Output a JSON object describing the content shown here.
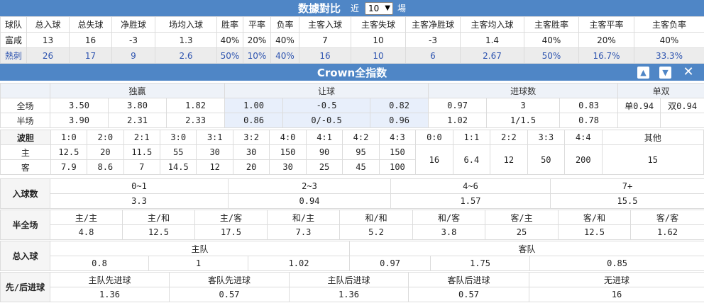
{
  "stats_header": {
    "title": "数據對比",
    "prefix": "近",
    "select_value": "10",
    "suffix": "場"
  },
  "stats": {
    "columns": [
      "球队",
      "总入球",
      "总失球",
      "净胜球",
      "场均入球",
      "胜率",
      "平率",
      "负率",
      "主客入球",
      "主客失球",
      "主客净胜球",
      "主客均入球",
      "主客胜率",
      "主客平率",
      "主客负率"
    ],
    "rows": [
      [
        "富咸",
        "13",
        "16",
        "-3",
        "1.3",
        "40%",
        "20%",
        "40%",
        "7",
        "10",
        "-3",
        "1.4",
        "40%",
        "20%",
        "40%"
      ],
      [
        "熱刺",
        "26",
        "17",
        "9",
        "2.6",
        "50%",
        "10%",
        "40%",
        "16",
        "10",
        "6",
        "2.67",
        "50%",
        "16.7%",
        "33.3%"
      ]
    ]
  },
  "crown_header": {
    "title": "Crown全指数",
    "up_icon": "▲",
    "down_icon": "▼",
    "close_icon": "✕"
  },
  "odds": {
    "groups": [
      "独赢",
      "让球",
      "进球数",
      "单双"
    ],
    "rows": [
      {
        "label": "全场",
        "win": [
          "3.50",
          "3.80",
          "1.82"
        ],
        "handicap": [
          "1.00",
          "-0.5",
          "0.82"
        ],
        "goals": [
          "0.97",
          "3",
          "0.83"
        ],
        "odd": "单0.94",
        "even": "双0.94"
      },
      {
        "label": "半场",
        "win": [
          "3.90",
          "2.31",
          "2.33"
        ],
        "handicap": [
          "0.86",
          "0/-0.5",
          "0.96"
        ],
        "goals": [
          "1.02",
          "1/1.5",
          "0.78"
        ],
        "odd": "",
        "even": ""
      }
    ]
  },
  "correct_score": {
    "label": "波胆",
    "scores": [
      "1:0",
      "2:0",
      "2:1",
      "3:0",
      "3:1",
      "3:2",
      "4:0",
      "4:1",
      "4:2",
      "4:3",
      "0:0",
      "1:1",
      "2:2",
      "3:3",
      "4:4",
      "其他"
    ],
    "home_label": "主",
    "away_label": "客",
    "home": [
      "12.5",
      "20",
      "11.5",
      "55",
      "30",
      "30",
      "150",
      "90",
      "95",
      "150"
    ],
    "away": [
      "7.9",
      "8.6",
      "7",
      "14.5",
      "12",
      "20",
      "30",
      "25",
      "45",
      "100"
    ],
    "draws": [
      "16",
      "6.4",
      "12",
      "50",
      "200",
      "15"
    ]
  },
  "total_goals": {
    "label": "入球数",
    "ranges": [
      "0~1",
      "2~3",
      "4~6",
      "7+"
    ],
    "values": [
      "3.3",
      "0.94",
      "1.57",
      "15.5"
    ]
  },
  "half_full": {
    "label": "半全场",
    "options": [
      "主/主",
      "主/和",
      "主/客",
      "和/主",
      "和/和",
      "和/客",
      "客/主",
      "客/和",
      "客/客"
    ],
    "values": [
      "4.8",
      "12.5",
      "17.5",
      "7.3",
      "5.2",
      "3.8",
      "25",
      "12.5",
      "1.62"
    ]
  },
  "team_goals": {
    "label": "总入球",
    "home": "主队",
    "away": "客队",
    "values": [
      "0.8",
      "1",
      "1.02",
      "0.97",
      "1.75",
      "0.85"
    ]
  },
  "first_last": {
    "label": "先/后进球",
    "options": [
      "主队先进球",
      "客队先进球",
      "主队后进球",
      "客队后进球",
      "无进球"
    ],
    "values": [
      "1.36",
      "0.57",
      "1.36",
      "0.57",
      "16"
    ]
  }
}
